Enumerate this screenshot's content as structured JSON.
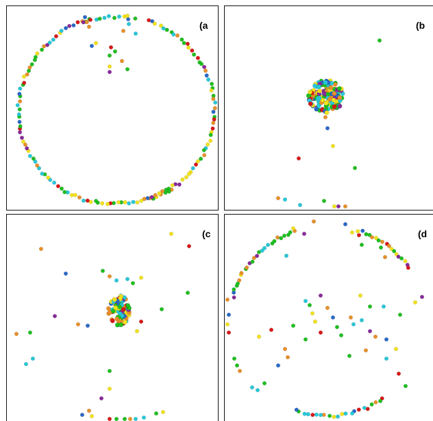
{
  "panels": [
    {
      "id": "a",
      "label": "(a"
    },
    {
      "id": "b",
      "label": "(b"
    },
    {
      "id": "c",
      "label": "(c"
    },
    {
      "id": "d",
      "label": "(d"
    }
  ],
  "palette": {
    "green": "#1fbf1f",
    "yellow": "#f2e21c",
    "cyan": "#28c8d8",
    "orange": "#e8902a",
    "red": "#d81818",
    "blue": "#2a68c8",
    "purple": "#8a2a9a",
    "gray": "#a8a8a8"
  }
}
